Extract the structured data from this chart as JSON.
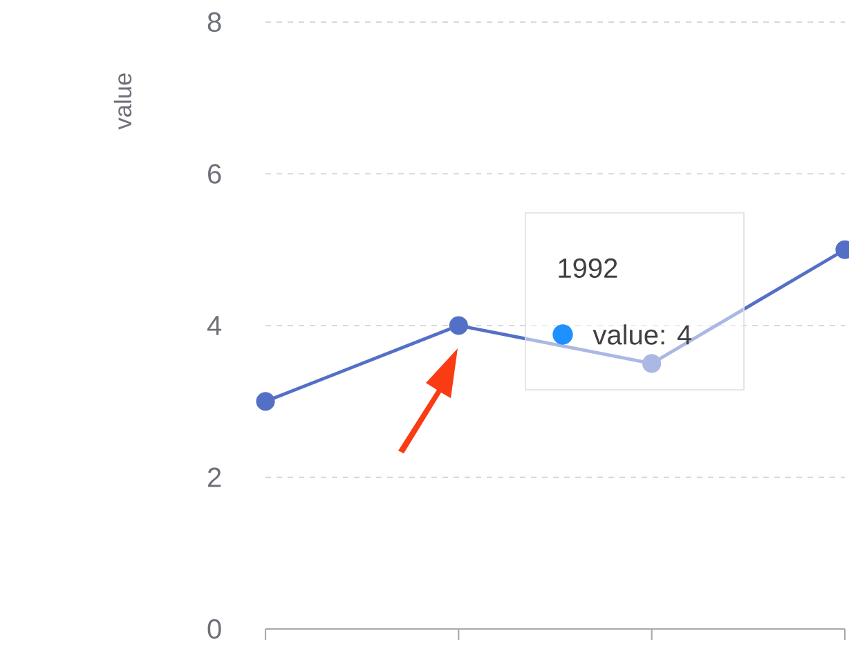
{
  "chart_data": {
    "type": "line",
    "ylabel": "value",
    "categories": [
      null,
      null,
      null,
      null
    ],
    "values": [
      3,
      4,
      3.5,
      5
    ],
    "color": "#5470c6",
    "ylim": [
      0,
      8
    ],
    "yticks": [
      0,
      2,
      4,
      6,
      8
    ],
    "grid": "y",
    "marker": "circle",
    "tick_labels": "y",
    "annotations": [
      "1992",
      "value: 4"
    ]
  }
}
